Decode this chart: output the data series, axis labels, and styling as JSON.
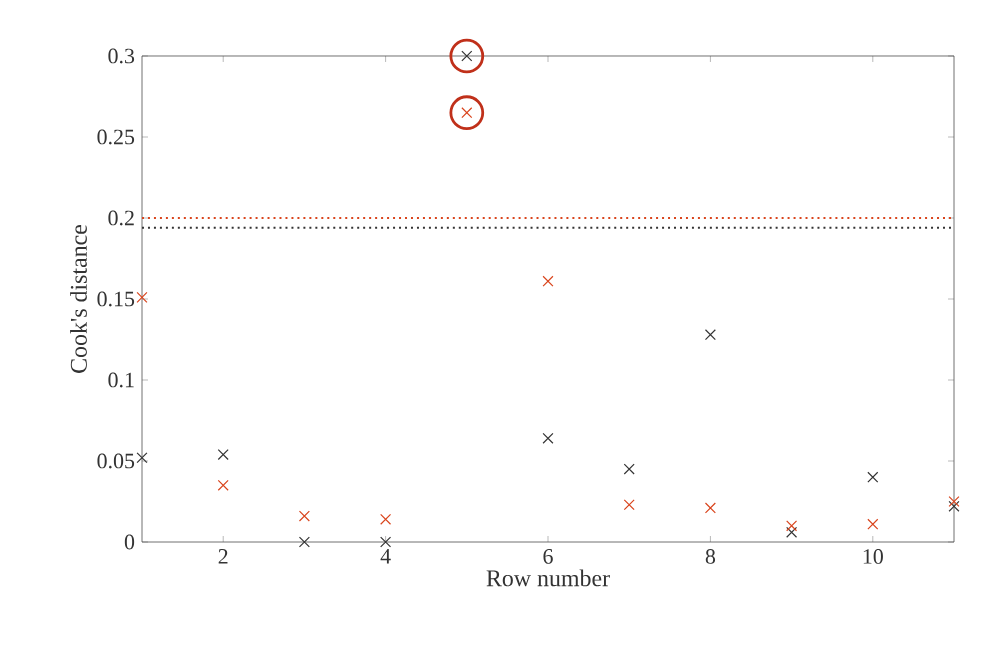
{
  "chart_data": {
    "type": "scatter",
    "xlabel": "Row number",
    "ylabel": "Cook's distance",
    "x": [
      1,
      2,
      3,
      4,
      5,
      6,
      7,
      8,
      9,
      10,
      11
    ],
    "xlim": [
      1,
      11
    ],
    "xticks": [
      2,
      4,
      6,
      8,
      10
    ],
    "ylim": [
      0,
      0.3
    ],
    "yticks": [
      0,
      0.05,
      0.1,
      0.15,
      0.2,
      0.25,
      0.3
    ],
    "series": [
      {
        "color": "#333333",
        "marker": "cross",
        "values": [
          0.052,
          0.054,
          0.0,
          0.0,
          0.3,
          0.064,
          0.045,
          0.128,
          0.006,
          0.04,
          0.022
        ]
      },
      {
        "color": "#d9441c",
        "marker": "cross",
        "values": [
          0.151,
          0.035,
          0.016,
          0.014,
          0.265,
          0.161,
          0.023,
          0.021,
          0.01,
          0.011,
          0.025
        ]
      },
      {
        "color": "#c0301a",
        "marker": "circle",
        "values": [
          null,
          null,
          null,
          null,
          0.3,
          null,
          null,
          null,
          null,
          null,
          null
        ]
      },
      {
        "color": "#c0301a",
        "marker": "circle",
        "values": [
          null,
          null,
          null,
          null,
          0.265,
          null,
          null,
          null,
          null,
          null,
          null
        ]
      }
    ],
    "ref_lines": [
      {
        "axis": "y",
        "value": 0.2,
        "color": "#d9441c",
        "line_style": "dotted"
      },
      {
        "axis": "y",
        "value": 0.194,
        "color": "#333333",
        "line_style": "dotted"
      }
    ]
  }
}
